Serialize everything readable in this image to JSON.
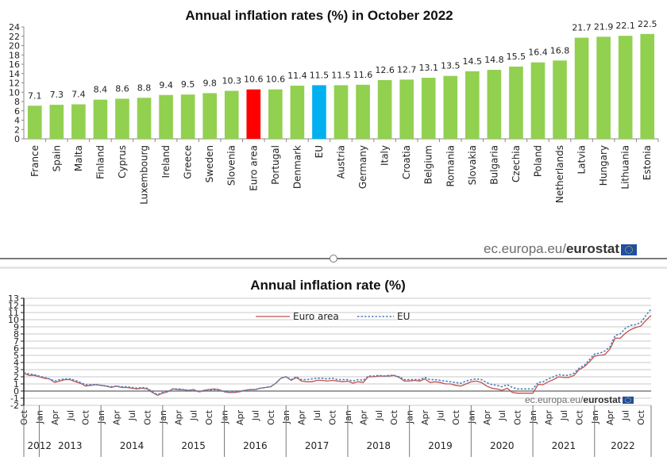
{
  "chart_data": [
    {
      "type": "bar",
      "title": "Annual inflation rates (%) in October 2022",
      "xlabel": "",
      "ylabel": "",
      "ylim": [
        0,
        24
      ],
      "yticks": [
        "0",
        "2",
        "4",
        "6",
        "8",
        "10",
        "12",
        "14",
        "16",
        "18",
        "20",
        "22",
        "24"
      ],
      "grid": false,
      "categories": [
        "France",
        "Spain",
        "Malta",
        "Finland",
        "Cyprus",
        "Luxembourg",
        "Ireland",
        "Greece",
        "Sweden",
        "Slovenia",
        "Euro area",
        "Portugal",
        "Denmark",
        "EU",
        "Austria",
        "Germany",
        "Italy",
        "Croatia",
        "Belgium",
        "Romania",
        "Slovakia",
        "Bulgaria",
        "Czechia",
        "Poland",
        "Netherlands",
        "Latvia",
        "Hungary",
        "Lithuania",
        "Estonia"
      ],
      "values": [
        7.1,
        7.3,
        7.4,
        8.4,
        8.6,
        8.8,
        9.4,
        9.5,
        9.8,
        10.3,
        10.6,
        10.6,
        11.4,
        11.5,
        11.5,
        11.6,
        12.6,
        12.7,
        13.1,
        13.5,
        14.5,
        14.8,
        15.5,
        16.4,
        16.8,
        21.7,
        21.9,
        22.1,
        22.5
      ],
      "labels": [
        "7.1",
        "7.3",
        "7.4",
        "8.4",
        "8.6",
        "8.8",
        "9.4",
        "9.5",
        "9.8",
        "10.3",
        "10.6",
        "10.6",
        "11.4",
        "11.5",
        "11.5",
        "11.6",
        "12.6",
        "12.7",
        "13.1",
        "13.5",
        "14.5",
        "14.8",
        "15.5",
        "16.4",
        "16.8",
        "21.7",
        "21.9",
        "22.1",
        "22.5"
      ],
      "colors": {
        "default": "#92d050",
        "Euro area": "#ff0000",
        "EU": "#00b0f0"
      }
    },
    {
      "type": "line",
      "title": "Annual inflation rate (%)",
      "xlabel": "",
      "ylabel": "",
      "ylim": [
        -2,
        13
      ],
      "yticks": [
        "-2",
        "-1",
        "0",
        "1",
        "2",
        "3",
        "4",
        "5",
        "6",
        "7",
        "8",
        "9",
        "10",
        "11",
        "12",
        "13"
      ],
      "grid": true,
      "legend": "top-center",
      "month_ticks": [
        "Oct",
        "Jan",
        "Apr",
        "Jul",
        "Oct",
        "Jan",
        "Apr",
        "Jul",
        "Oct",
        "Jan",
        "Apr",
        "Jul",
        "Oct",
        "Jan",
        "Apr",
        "Jul",
        "Oct",
        "Jan",
        "Apr",
        "Jul",
        "Oct",
        "Jan",
        "Apr",
        "Jul",
        "Oct",
        "Jan",
        "Apr",
        "Jul",
        "Oct",
        "Jan",
        "Apr",
        "Jul",
        "Oct",
        "Jan",
        "Apr",
        "Jul",
        "Oct",
        "Jan",
        "Apr",
        "Jul",
        "Oct"
      ],
      "years": [
        "2012",
        "2013",
        "2014",
        "2015",
        "2016",
        "2017",
        "2018",
        "2019",
        "2020",
        "2021",
        "2022"
      ],
      "x_start": "2012-10",
      "x_end": "2022-10",
      "series": [
        {
          "name": "Euro area",
          "color": "#c0504d",
          "style": "solid",
          "values": [
            2.5,
            2.2,
            2.2,
            2.0,
            1.8,
            1.7,
            1.2,
            1.4,
            1.6,
            1.6,
            1.3,
            1.1,
            0.7,
            0.8,
            0.9,
            0.8,
            0.7,
            0.5,
            0.7,
            0.5,
            0.5,
            0.4,
            0.3,
            0.4,
            0.3,
            -0.2,
            -0.6,
            -0.3,
            -0.1,
            0.3,
            0.2,
            0.2,
            0.1,
            0.2,
            -0.1,
            0.1,
            0.2,
            0.3,
            0.2,
            -0.1,
            -0.2,
            -0.2,
            -0.1,
            0.1,
            0.2,
            0.2,
            0.4,
            0.5,
            0.6,
            1.1,
            1.8,
            2.0,
            1.5,
            1.9,
            1.4,
            1.3,
            1.3,
            1.5,
            1.5,
            1.4,
            1.5,
            1.4,
            1.3,
            1.4,
            1.1,
            1.3,
            1.2,
            2.0,
            2.0,
            2.1,
            2.1,
            2.1,
            2.2,
            1.9,
            1.4,
            1.4,
            1.5,
            1.4,
            1.7,
            1.2,
            1.3,
            1.2,
            1.0,
            1.0,
            0.8,
            0.7,
            1.0,
            1.3,
            1.4,
            1.2,
            0.7,
            0.4,
            0.3,
            0.1,
            0.4,
            -0.2,
            -0.3,
            -0.3,
            -0.3,
            -0.3,
            0.9,
            0.9,
            1.3,
            1.6,
            2.0,
            1.9,
            1.9,
            2.2,
            3.0,
            3.4,
            4.1,
            4.9,
            5.0,
            5.1,
            5.9,
            7.4,
            7.4,
            8.1,
            8.6,
            8.9,
            9.1,
            9.9,
            10.6
          ]
        },
        {
          "name": "EU",
          "color": "#4f81bd",
          "style": "dashed",
          "values": [
            2.6,
            2.4,
            2.3,
            2.1,
            1.9,
            1.7,
            1.4,
            1.6,
            1.7,
            1.7,
            1.5,
            1.2,
            0.9,
            0.9,
            0.9,
            0.8,
            0.7,
            0.6,
            0.7,
            0.6,
            0.6,
            0.5,
            0.4,
            0.5,
            0.4,
            -0.1,
            -0.5,
            -0.2,
            -0.1,
            0.3,
            0.3,
            0.2,
            0.1,
            0.2,
            -0.1,
            0.0,
            0.1,
            0.2,
            0.1,
            -0.1,
            -0.2,
            -0.1,
            0.0,
            0.1,
            0.2,
            0.2,
            0.4,
            0.5,
            0.6,
            1.1,
            1.8,
            2.0,
            1.6,
            2.0,
            1.6,
            1.6,
            1.7,
            1.8,
            1.8,
            1.7,
            1.8,
            1.6,
            1.6,
            1.6,
            1.4,
            1.6,
            1.5,
            2.1,
            2.1,
            2.2,
            2.1,
            2.2,
            2.2,
            2.0,
            1.6,
            1.6,
            1.6,
            1.6,
            1.9,
            1.6,
            1.6,
            1.5,
            1.4,
            1.3,
            1.2,
            1.1,
            1.4,
            1.6,
            1.7,
            1.6,
            1.2,
            0.9,
            0.8,
            0.6,
            0.9,
            0.5,
            0.3,
            0.3,
            0.3,
            0.3,
            1.2,
            1.3,
            1.7,
            2.0,
            2.3,
            2.2,
            2.2,
            2.5,
            3.2,
            3.6,
            4.4,
            5.2,
            5.3,
            5.6,
            6.2,
            7.8,
            8.0,
            8.8,
            9.2,
            9.3,
            9.6,
            10.6,
            11.5
          ]
        }
      ]
    }
  ],
  "logos": {
    "top": {
      "domain": "ec.europa.eu/",
      "brand": "eurostat"
    },
    "bottom": {
      "domain": "ec.europa.eu/",
      "brand": "eurostat"
    }
  }
}
